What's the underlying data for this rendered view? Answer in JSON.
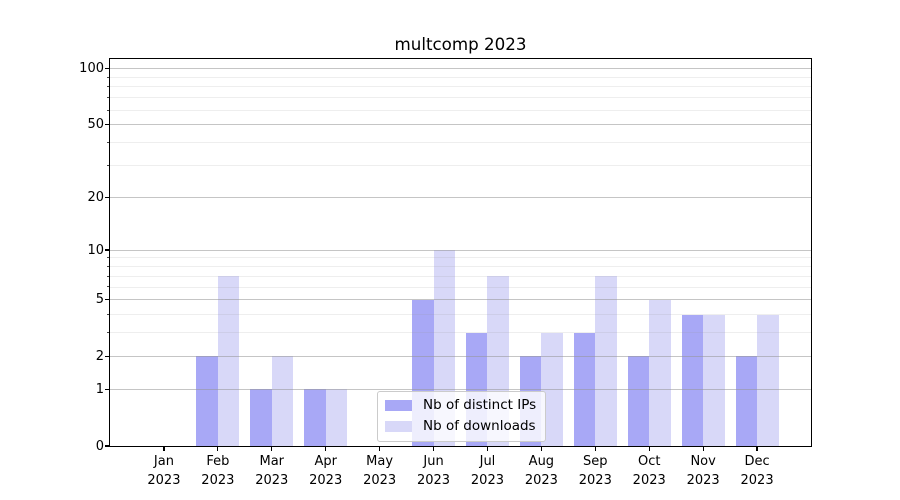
{
  "chart_data": {
    "type": "bar",
    "title": "multcomp 2023",
    "categories": [
      "Jan",
      "Feb",
      "Mar",
      "Apr",
      "May",
      "Jun",
      "Jul",
      "Aug",
      "Sep",
      "Oct",
      "Nov",
      "Dec"
    ],
    "year_label": "2023",
    "series": [
      {
        "name": "Nb of distinct IPs",
        "color": "#a8a8f6",
        "values": [
          0,
          2,
          1,
          1,
          0,
          5,
          3,
          2,
          3,
          2,
          4,
          2
        ]
      },
      {
        "name": "Nb of downloads",
        "color": "#d8d8f8",
        "values": [
          0,
          7,
          2,
          1,
          0,
          10,
          7,
          3,
          7,
          5,
          4,
          4
        ]
      }
    ],
    "yscale": "log1p",
    "ylim": [
      0,
      113
    ],
    "ytick_values": [
      0,
      1,
      2,
      5,
      10,
      20,
      50,
      100
    ],
    "yminor_values": [
      3,
      4,
      6,
      7,
      8,
      9,
      30,
      40,
      60,
      70,
      80,
      90
    ],
    "grid": "on",
    "legend_position": "lower center"
  },
  "colors": {
    "background": "#ffffff",
    "axis": "#000000",
    "grid": "#969696",
    "legend_border": "#cbcbcb"
  }
}
